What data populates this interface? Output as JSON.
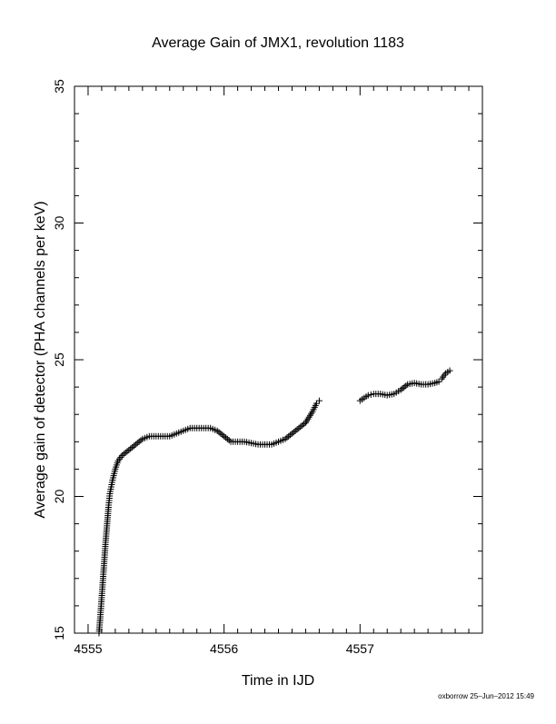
{
  "chart_data": {
    "type": "scatter",
    "title": "Average Gain of JMX1, revolution 1183",
    "xlabel": "Time in IJD",
    "ylabel": "Average gain of detector (PHA channels per keV)",
    "xlim": [
      4554.9,
      4557.9
    ],
    "ylim": [
      15,
      35
    ],
    "xticks": [
      4555,
      4556,
      4557
    ],
    "xtick_labels": [
      "4555",
      "4556",
      "4557"
    ],
    "yticks": [
      15,
      20,
      25,
      30,
      35
    ],
    "ytick_labels": [
      "15",
      "20",
      "25",
      "30",
      "35"
    ],
    "marker": "plus",
    "color": "#000000",
    "grid": false,
    "series": [
      {
        "points": [
          [
            4555.08,
            15.0
          ],
          [
            4555.09,
            15.6
          ],
          [
            4555.1,
            16.3
          ],
          [
            4555.11,
            17.0
          ],
          [
            4555.12,
            17.7
          ],
          [
            4555.13,
            18.4
          ],
          [
            4555.14,
            19.0
          ],
          [
            4555.15,
            19.6
          ],
          [
            4555.16,
            20.1
          ],
          [
            4555.18,
            20.6
          ],
          [
            4555.2,
            21.0
          ],
          [
            4555.22,
            21.3
          ],
          [
            4555.25,
            21.5
          ],
          [
            4555.3,
            21.7
          ],
          [
            4555.35,
            21.9
          ],
          [
            4555.4,
            22.1
          ],
          [
            4555.45,
            22.2
          ],
          [
            4555.5,
            22.2
          ],
          [
            4555.55,
            22.2
          ],
          [
            4555.6,
            22.2
          ],
          [
            4555.65,
            22.3
          ],
          [
            4555.7,
            22.4
          ],
          [
            4555.75,
            22.5
          ],
          [
            4555.8,
            22.5
          ],
          [
            4555.85,
            22.5
          ],
          [
            4555.9,
            22.5
          ],
          [
            4555.95,
            22.4
          ],
          [
            4556.0,
            22.2
          ],
          [
            4556.05,
            22.0
          ],
          [
            4556.1,
            22.0
          ],
          [
            4556.15,
            22.0
          ],
          [
            4556.2,
            21.95
          ],
          [
            4556.25,
            21.9
          ],
          [
            4556.3,
            21.9
          ],
          [
            4556.35,
            21.9
          ],
          [
            4556.4,
            22.0
          ],
          [
            4556.45,
            22.1
          ],
          [
            4556.5,
            22.3
          ],
          [
            4556.55,
            22.5
          ],
          [
            4556.6,
            22.7
          ],
          [
            4556.65,
            23.1
          ],
          [
            4556.68,
            23.4
          ],
          [
            4556.7,
            23.5
          ]
        ]
      },
      {
        "points": [
          [
            4557.0,
            23.5
          ],
          [
            4557.03,
            23.6
          ],
          [
            4557.06,
            23.7
          ],
          [
            4557.1,
            23.75
          ],
          [
            4557.15,
            23.75
          ],
          [
            4557.2,
            23.7
          ],
          [
            4557.25,
            23.75
          ],
          [
            4557.3,
            23.9
          ],
          [
            4557.35,
            24.1
          ],
          [
            4557.4,
            24.15
          ],
          [
            4557.45,
            24.1
          ],
          [
            4557.5,
            24.1
          ],
          [
            4557.55,
            24.15
          ],
          [
            4557.58,
            24.2
          ],
          [
            4557.6,
            24.3
          ],
          [
            4557.63,
            24.5
          ],
          [
            4557.66,
            24.6
          ]
        ]
      }
    ]
  },
  "footer": {
    "credit": "oxborrow 25–Jun–2012 15:49"
  }
}
